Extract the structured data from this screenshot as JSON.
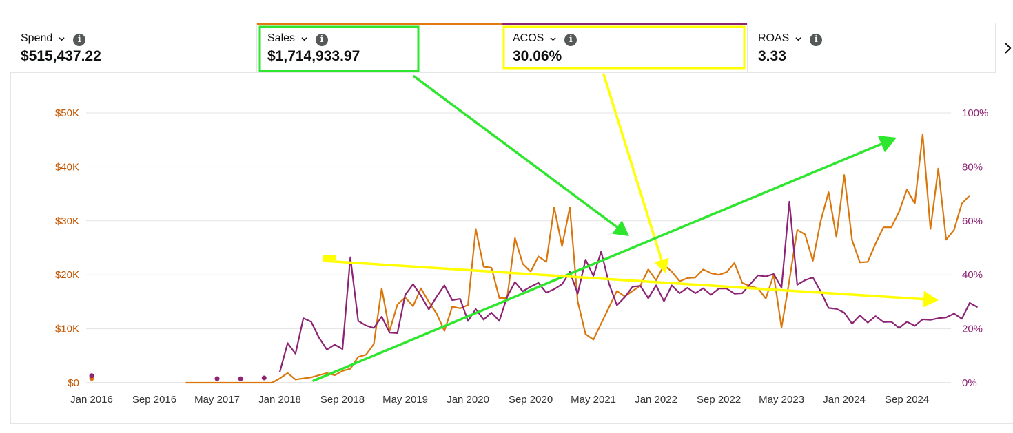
{
  "metrics": [
    {
      "name": "Spend",
      "value": "$515,437.22",
      "selected": false,
      "accent": ""
    },
    {
      "name": "Sales",
      "value": "$1,714,933.97",
      "selected": true,
      "accent": "#e47911"
    },
    {
      "name": "ACOS",
      "value": "30.06%",
      "selected": true,
      "accent": "#8c2374"
    },
    {
      "name": "ROAS",
      "value": "3.33",
      "selected": false,
      "accent": ""
    }
  ],
  "info_icon_glyph": "i",
  "colors": {
    "sales": "#d9760c",
    "acos": "#8c2374",
    "grid": "#e3e3e3",
    "annotation_green": "#2ee62e",
    "annotation_yellow": "#ffff00"
  },
  "chart_data": {
    "type": "line",
    "x_tick_labels": [
      "Jan 2016",
      "Sep 2016",
      "May 2017",
      "Jan 2018",
      "Sep 2018",
      "May 2019",
      "Jan 2020",
      "Sep 2020",
      "May 2021",
      "Jan 2022",
      "Sep 2022",
      "May 2023",
      "Jan 2024",
      "Sep 2024"
    ],
    "x_range": [
      "2016-01",
      "2025-02"
    ],
    "left_axis": {
      "ticks": [
        "$0",
        "$10K",
        "$20K",
        "$30K",
        "$40K",
        "$50K"
      ],
      "ylim": [
        0,
        50000
      ]
    },
    "right_axis": {
      "ticks": [
        "0%",
        "20%",
        "40%",
        "60%",
        "80%",
        "100%"
      ],
      "ylim": [
        0,
        100
      ]
    },
    "grid": true,
    "series": [
      {
        "axis": "left",
        "values": [
          [
            "2016-01",
            800
          ],
          [
            "2017-01",
            0
          ],
          [
            "2017-02",
            0
          ],
          [
            "2017-03",
            0
          ],
          [
            "2017-04",
            0
          ],
          [
            "2017-05",
            0
          ],
          [
            "2017-06",
            0
          ],
          [
            "2017-07",
            0
          ],
          [
            "2017-08",
            0
          ],
          [
            "2017-09",
            0
          ],
          [
            "2017-10",
            0
          ],
          [
            "2017-11",
            0
          ],
          [
            "2017-12",
            0
          ],
          [
            "2018-01",
            800
          ],
          [
            "2018-02",
            1800
          ],
          [
            "2018-03",
            600
          ],
          [
            "2018-04",
            800
          ],
          [
            "2018-05",
            1000
          ],
          [
            "2018-06",
            1400
          ],
          [
            "2018-07",
            1800
          ],
          [
            "2018-08",
            1400
          ],
          [
            "2018-09",
            2200
          ],
          [
            "2018-10",
            2600
          ],
          [
            "2018-11",
            4800
          ],
          [
            "2018-12",
            5200
          ],
          [
            "2019-01",
            7200
          ],
          [
            "2019-02",
            17500
          ],
          [
            "2019-03",
            9600
          ],
          [
            "2019-04",
            14500
          ],
          [
            "2019-05",
            15800
          ],
          [
            "2019-06",
            14200
          ],
          [
            "2019-07",
            17500
          ],
          [
            "2019-08",
            15000
          ],
          [
            "2019-09",
            12800
          ],
          [
            "2019-10",
            9600
          ],
          [
            "2019-11",
            14100
          ],
          [
            "2019-12",
            13800
          ],
          [
            "2020-01",
            14400
          ],
          [
            "2020-02",
            28500
          ],
          [
            "2020-03",
            21500
          ],
          [
            "2020-04",
            21300
          ],
          [
            "2020-05",
            15700
          ],
          [
            "2020-06",
            15700
          ],
          [
            "2020-07",
            26800
          ],
          [
            "2020-08",
            22000
          ],
          [
            "2020-09",
            20600
          ],
          [
            "2020-10",
            23400
          ],
          [
            "2020-11",
            22400
          ],
          [
            "2020-12",
            32500
          ],
          [
            "2021-01",
            25300
          ],
          [
            "2021-02",
            32500
          ],
          [
            "2021-03",
            15100
          ],
          [
            "2021-04",
            9000
          ],
          [
            "2021-05",
            8000
          ],
          [
            "2021-06",
            11000
          ],
          [
            "2021-07",
            14000
          ],
          [
            "2021-08",
            17000
          ],
          [
            "2021-09",
            16000
          ],
          [
            "2021-10",
            17000
          ],
          [
            "2021-11",
            18000
          ],
          [
            "2021-12",
            21000
          ],
          [
            "2022-01",
            19000
          ],
          [
            "2022-02",
            21800
          ],
          [
            "2022-03",
            20600
          ],
          [
            "2022-04",
            18800
          ],
          [
            "2022-05",
            19400
          ],
          [
            "2022-06",
            19500
          ],
          [
            "2022-07",
            21000
          ],
          [
            "2022-08",
            20300
          ],
          [
            "2022-09",
            20000
          ],
          [
            "2022-10",
            20500
          ],
          [
            "2022-11",
            22200
          ],
          [
            "2022-12",
            18500
          ],
          [
            "2023-01",
            17900
          ],
          [
            "2023-02",
            17500
          ],
          [
            "2023-03",
            15600
          ],
          [
            "2023-04",
            20000
          ],
          [
            "2023-05",
            10200
          ],
          [
            "2023-06",
            19000
          ],
          [
            "2023-07",
            28300
          ],
          [
            "2023-08",
            27500
          ],
          [
            "2023-09",
            22600
          ],
          [
            "2023-10",
            30000
          ],
          [
            "2023-11",
            35300
          ],
          [
            "2023-12",
            27000
          ],
          [
            "2024-01",
            38500
          ],
          [
            "2024-02",
            26400
          ],
          [
            "2024-03",
            22300
          ],
          [
            "2024-04",
            22400
          ],
          [
            "2024-05",
            25800
          ],
          [
            "2024-06",
            28800
          ],
          [
            "2024-07",
            28800
          ],
          [
            "2024-08",
            31700
          ],
          [
            "2024-09",
            35800
          ],
          [
            "2024-10",
            33200
          ],
          [
            "2024-11",
            46000
          ],
          [
            "2024-12",
            28500
          ],
          [
            "2025-01",
            39700
          ],
          [
            "2025-02",
            26500
          ],
          [
            "2025-03",
            28300
          ],
          [
            "2025-04",
            33200
          ],
          [
            "2025-05",
            34700
          ]
        ]
      },
      {
        "axis": "right",
        "values": [
          [
            "2016-01",
            2.6
          ],
          [
            "2017-05",
            1.5
          ],
          [
            "2017-08",
            1.5
          ],
          [
            "2017-11",
            1.8
          ],
          [
            "2018-01",
            4
          ],
          [
            "2018-02",
            14.7
          ],
          [
            "2018-03",
            10.8
          ],
          [
            "2018-04",
            23.9
          ],
          [
            "2018-05",
            22.6
          ],
          [
            "2018-06",
            16.7
          ],
          [
            "2018-07",
            12.3
          ],
          [
            "2018-08",
            14.1
          ],
          [
            "2018-09",
            12.5
          ],
          [
            "2018-10",
            46.5
          ],
          [
            "2018-11",
            22.9
          ],
          [
            "2018-12",
            21.2
          ],
          [
            "2019-01",
            20.3
          ],
          [
            "2019-02",
            24.5
          ],
          [
            "2019-03",
            18.6
          ],
          [
            "2019-04",
            18.4
          ],
          [
            "2019-05",
            32.6
          ],
          [
            "2019-06",
            36.5
          ],
          [
            "2019-07",
            32.3
          ],
          [
            "2019-08",
            27.2
          ],
          [
            "2019-09",
            31.9
          ],
          [
            "2019-10",
            36.1
          ],
          [
            "2019-11",
            30.6
          ],
          [
            "2019-12",
            31.1
          ],
          [
            "2020-01",
            22.9
          ],
          [
            "2020-02",
            27.3
          ],
          [
            "2020-03",
            23.4
          ],
          [
            "2020-04",
            26.0
          ],
          [
            "2020-05",
            22.9
          ],
          [
            "2020-06",
            31.9
          ],
          [
            "2020-07",
            37.3
          ],
          [
            "2020-08",
            33.9
          ],
          [
            "2020-09",
            35.6
          ],
          [
            "2020-10",
            37.0
          ],
          [
            "2020-11",
            33.4
          ],
          [
            "2020-12",
            34.7
          ],
          [
            "2021-01",
            36.5
          ],
          [
            "2021-02",
            41.1
          ],
          [
            "2021-03",
            33.0
          ],
          [
            "2021-04",
            45.6
          ],
          [
            "2021-05",
            39.6
          ],
          [
            "2021-06",
            48.6
          ],
          [
            "2021-07",
            36.7
          ],
          [
            "2021-08",
            28.7
          ],
          [
            "2021-09",
            31.7
          ],
          [
            "2021-10",
            35.6
          ],
          [
            "2021-11",
            35.9
          ],
          [
            "2021-12",
            31.3
          ],
          [
            "2022-01",
            36.1
          ],
          [
            "2022-02",
            30.2
          ],
          [
            "2022-03",
            36.1
          ],
          [
            "2022-04",
            33.2
          ],
          [
            "2022-05",
            35.2
          ],
          [
            "2022-06",
            33.2
          ],
          [
            "2022-07",
            35.0
          ],
          [
            "2022-08",
            32.6
          ],
          [
            "2022-09",
            34.9
          ],
          [
            "2022-10",
            34.9
          ],
          [
            "2022-11",
            33.0
          ],
          [
            "2022-12",
            33.2
          ],
          [
            "2023-01",
            36.5
          ],
          [
            "2023-02",
            39.8
          ],
          [
            "2023-03",
            39.4
          ],
          [
            "2023-04",
            40.3
          ],
          [
            "2023-05",
            35.2
          ],
          [
            "2023-06",
            67.1
          ],
          [
            "2023-07",
            36.3
          ],
          [
            "2023-08",
            38.0
          ],
          [
            "2023-09",
            39.0
          ],
          [
            "2023-10",
            33.8
          ],
          [
            "2023-11",
            27.7
          ],
          [
            "2023-12",
            27.4
          ],
          [
            "2024-01",
            26.0
          ],
          [
            "2024-02",
            21.9
          ],
          [
            "2024-03",
            25.0
          ],
          [
            "2024-04",
            22.3
          ],
          [
            "2024-05",
            24.7
          ],
          [
            "2024-06",
            22.5
          ],
          [
            "2024-07",
            22.6
          ],
          [
            "2024-08",
            20.3
          ],
          [
            "2024-09",
            22.6
          ],
          [
            "2024-10",
            21.1
          ],
          [
            "2024-11",
            23.5
          ],
          [
            "2024-12",
            23.3
          ],
          [
            "2025-01",
            23.9
          ],
          [
            "2025-02",
            24.2
          ],
          [
            "2025-03",
            25.6
          ],
          [
            "2025-04",
            23.7
          ],
          [
            "2025-05",
            29.6
          ],
          [
            "2025-06",
            28.0
          ]
        ]
      }
    ]
  }
}
